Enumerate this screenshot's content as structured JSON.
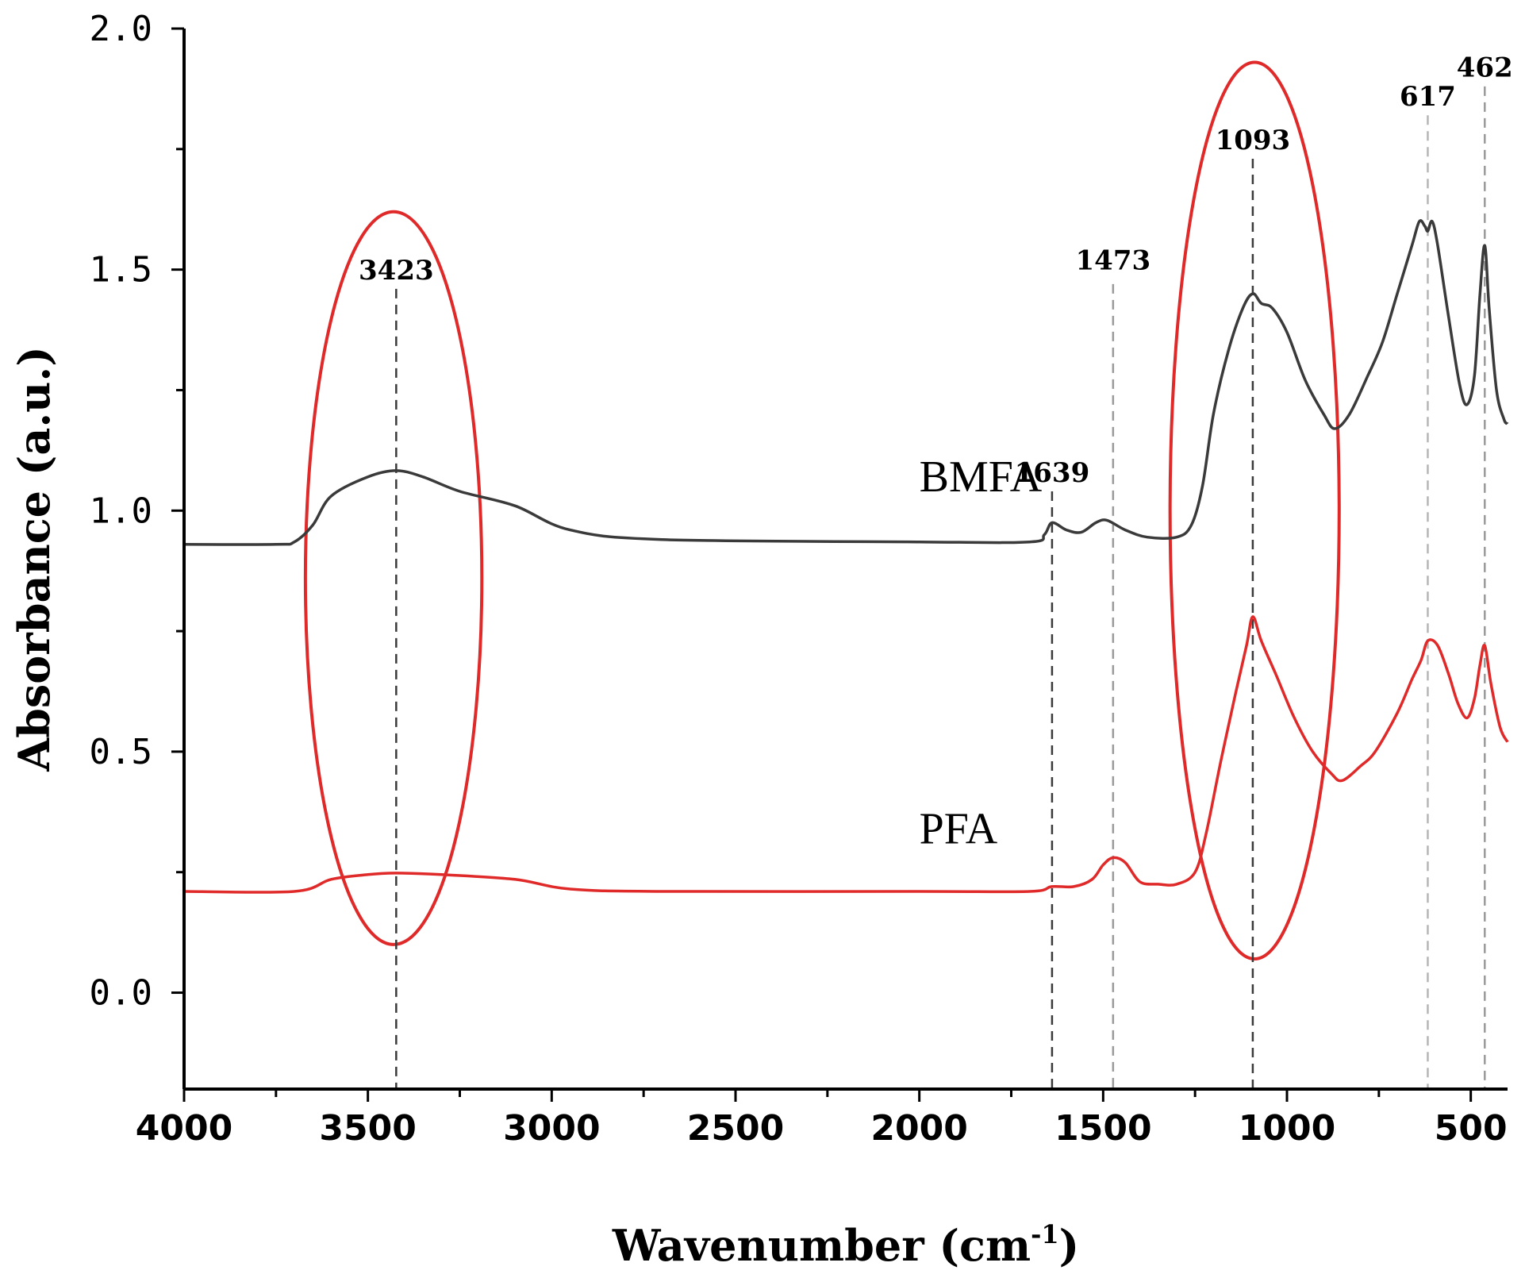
{
  "chart_data": {
    "type": "line",
    "title": "",
    "xlabel": "Wavenumber (cm",
    "xlabel_sup": "-1",
    "xlabel_close": ")",
    "ylabel": "Absorbance (a.u.)",
    "xlim": [
      4000,
      400
    ],
    "ylim": [
      -0.2,
      2.0
    ],
    "x_ticks": [
      4000,
      3500,
      3000,
      2500,
      2000,
      1500,
      1000,
      500
    ],
    "x_tick_labels": [
      "4000",
      "3500",
      "3000",
      "2500",
      "2000",
      "1500",
      "1000",
      "500"
    ],
    "y_ticks": [
      0.0,
      0.5,
      1.0,
      1.5,
      2.0
    ],
    "y_tick_labels": [
      "0.0",
      "0.5",
      "1.0",
      "1.5",
      "2.0"
    ],
    "series": [
      {
        "name": "BMFA",
        "color": "#3a3a3a",
        "label_at": [
          2000,
          1.04
        ],
        "points": [
          [
            4000,
            0.93
          ],
          [
            3750,
            0.93
          ],
          [
            3700,
            0.935
          ],
          [
            3650,
            0.97
          ],
          [
            3600,
            1.03
          ],
          [
            3500,
            1.07
          ],
          [
            3423,
            1.083
          ],
          [
            3350,
            1.07
          ],
          [
            3250,
            1.04
          ],
          [
            3100,
            1.01
          ],
          [
            2950,
            0.96
          ],
          [
            2700,
            0.94
          ],
          [
            2000,
            0.935
          ],
          [
            1700,
            0.935
          ],
          [
            1660,
            0.95
          ],
          [
            1639,
            0.975
          ],
          [
            1600,
            0.96
          ],
          [
            1560,
            0.955
          ],
          [
            1520,
            0.975
          ],
          [
            1490,
            0.98
          ],
          [
            1440,
            0.96
          ],
          [
            1380,
            0.945
          ],
          [
            1300,
            0.945
          ],
          [
            1260,
            0.97
          ],
          [
            1230,
            1.05
          ],
          [
            1200,
            1.2
          ],
          [
            1160,
            1.33
          ],
          [
            1120,
            1.42
          ],
          [
            1093,
            1.45
          ],
          [
            1070,
            1.43
          ],
          [
            1040,
            1.42
          ],
          [
            1000,
            1.37
          ],
          [
            950,
            1.27
          ],
          [
            900,
            1.2
          ],
          [
            870,
            1.17
          ],
          [
            830,
            1.2
          ],
          [
            780,
            1.28
          ],
          [
            740,
            1.35
          ],
          [
            700,
            1.45
          ],
          [
            660,
            1.55
          ],
          [
            640,
            1.6
          ],
          [
            625,
            1.59
          ],
          [
            617,
            1.58
          ],
          [
            605,
            1.6
          ],
          [
            590,
            1.55
          ],
          [
            560,
            1.4
          ],
          [
            530,
            1.26
          ],
          [
            510,
            1.22
          ],
          [
            490,
            1.28
          ],
          [
            475,
            1.45
          ],
          [
            462,
            1.55
          ],
          [
            450,
            1.42
          ],
          [
            430,
            1.25
          ],
          [
            410,
            1.19
          ],
          [
            400,
            1.18
          ]
        ]
      },
      {
        "name": "PFA",
        "color": "#e02a2a",
        "label_at": [
          2000,
          0.31
        ],
        "points": [
          [
            4000,
            0.21
          ],
          [
            3700,
            0.21
          ],
          [
            3600,
            0.235
          ],
          [
            3500,
            0.245
          ],
          [
            3423,
            0.248
          ],
          [
            3300,
            0.245
          ],
          [
            3100,
            0.235
          ],
          [
            2950,
            0.215
          ],
          [
            2700,
            0.21
          ],
          [
            2000,
            0.21
          ],
          [
            1700,
            0.21
          ],
          [
            1640,
            0.22
          ],
          [
            1580,
            0.22
          ],
          [
            1530,
            0.235
          ],
          [
            1500,
            0.265
          ],
          [
            1473,
            0.28
          ],
          [
            1440,
            0.27
          ],
          [
            1400,
            0.23
          ],
          [
            1350,
            0.225
          ],
          [
            1300,
            0.225
          ],
          [
            1250,
            0.25
          ],
          [
            1220,
            0.33
          ],
          [
            1180,
            0.48
          ],
          [
            1140,
            0.62
          ],
          [
            1110,
            0.72
          ],
          [
            1093,
            0.78
          ],
          [
            1070,
            0.73
          ],
          [
            1030,
            0.66
          ],
          [
            980,
            0.57
          ],
          [
            930,
            0.5
          ],
          [
            880,
            0.455
          ],
          [
            850,
            0.44
          ],
          [
            800,
            0.47
          ],
          [
            760,
            0.5
          ],
          [
            700,
            0.58
          ],
          [
            660,
            0.65
          ],
          [
            635,
            0.69
          ],
          [
            617,
            0.73
          ],
          [
            590,
            0.72
          ],
          [
            560,
            0.66
          ],
          [
            535,
            0.6
          ],
          [
            510,
            0.57
          ],
          [
            490,
            0.61
          ],
          [
            475,
            0.68
          ],
          [
            462,
            0.72
          ],
          [
            445,
            0.64
          ],
          [
            420,
            0.55
          ],
          [
            400,
            0.52
          ]
        ]
      }
    ],
    "peaks": [
      {
        "label": "3423",
        "x": 3423,
        "color": "#3a3a3a",
        "label_y": 1.48,
        "top": 1.46
      },
      {
        "label": "1639",
        "x": 1639,
        "color": "#3a3a3a",
        "label_y": 1.06,
        "top": 1.04
      },
      {
        "label": "1473",
        "x": 1473,
        "color": "#9a9a9a",
        "label_y": 1.5,
        "top": 1.47
      },
      {
        "label": "1093",
        "x": 1093,
        "color": "#3a3a3a",
        "label_y": 1.75,
        "top": 1.73
      },
      {
        "label": "617",
        "x": 617,
        "color": "#b5b5b5",
        "label_y": 1.84,
        "top": 1.82
      },
      {
        "label": "462",
        "x": 462,
        "color": "#9a9a9a",
        "label_y": 1.9,
        "top": 1.88
      }
    ],
    "highlights": [
      {
        "name": "oh-stretch-region",
        "cx": 3430,
        "cy": 0.86,
        "rx": 240,
        "ry": 0.76,
        "color": "#e02a2a"
      },
      {
        "name": "si-o-region",
        "cx": 1088,
        "cy": 1.0,
        "rx": 230,
        "ry": 0.93,
        "color": "#e02a2a"
      }
    ]
  }
}
